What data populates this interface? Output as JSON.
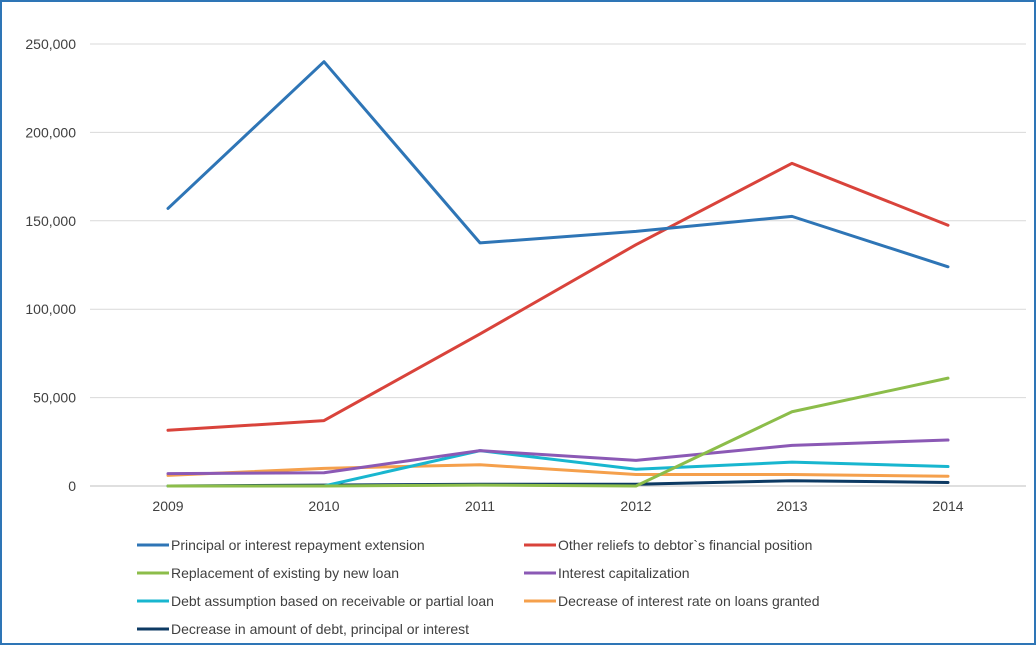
{
  "chart_data": {
    "type": "line",
    "title": "",
    "xlabel": "",
    "ylabel": "",
    "categories": [
      "2009",
      "2010",
      "2011",
      "2012",
      "2013",
      "2014"
    ],
    "ylim": [
      0,
      250000
    ],
    "yticks": [
      0,
      50000,
      100000,
      150000,
      200000,
      250000
    ],
    "ytick_labels": [
      "0",
      "50,000",
      "100,000",
      "150,000",
      "200,000",
      "250,000"
    ],
    "grid": true,
    "legend_position": "bottom",
    "series": [
      {
        "name": "Principal or interest repayment extension",
        "color": "#2e75b6",
        "values": [
          157000,
          240000,
          137500,
          144000,
          152500,
          124000
        ]
      },
      {
        "name": "Other reliefs to debtor`s financial position",
        "color": "#d9433b",
        "values": [
          31500,
          37000,
          86000,
          136500,
          182500,
          147500
        ]
      },
      {
        "name": "Replacement of existing by new loan",
        "color": "#8cbd4a",
        "values": [
          0,
          0,
          500,
          0,
          42000,
          61000
        ]
      },
      {
        "name": "Interest capitalization",
        "color": "#8b59b5",
        "values": [
          7000,
          7500,
          20000,
          14500,
          23000,
          26000
        ]
      },
      {
        "name": "Debt assumption based on receivable or partial loan",
        "color": "#18b6cf",
        "values": [
          0,
          0,
          20000,
          9500,
          13500,
          11000
        ]
      },
      {
        "name": "Decrease of interest rate on loans granted",
        "color": "#f5a04c",
        "values": [
          6000,
          10000,
          12000,
          6500,
          6500,
          5500
        ]
      },
      {
        "name": "Decrease in amount of debt, principal or interest",
        "color": "#0d3a63",
        "values": [
          0,
          500,
          1000,
          1000,
          3000,
          2000
        ]
      }
    ]
  }
}
